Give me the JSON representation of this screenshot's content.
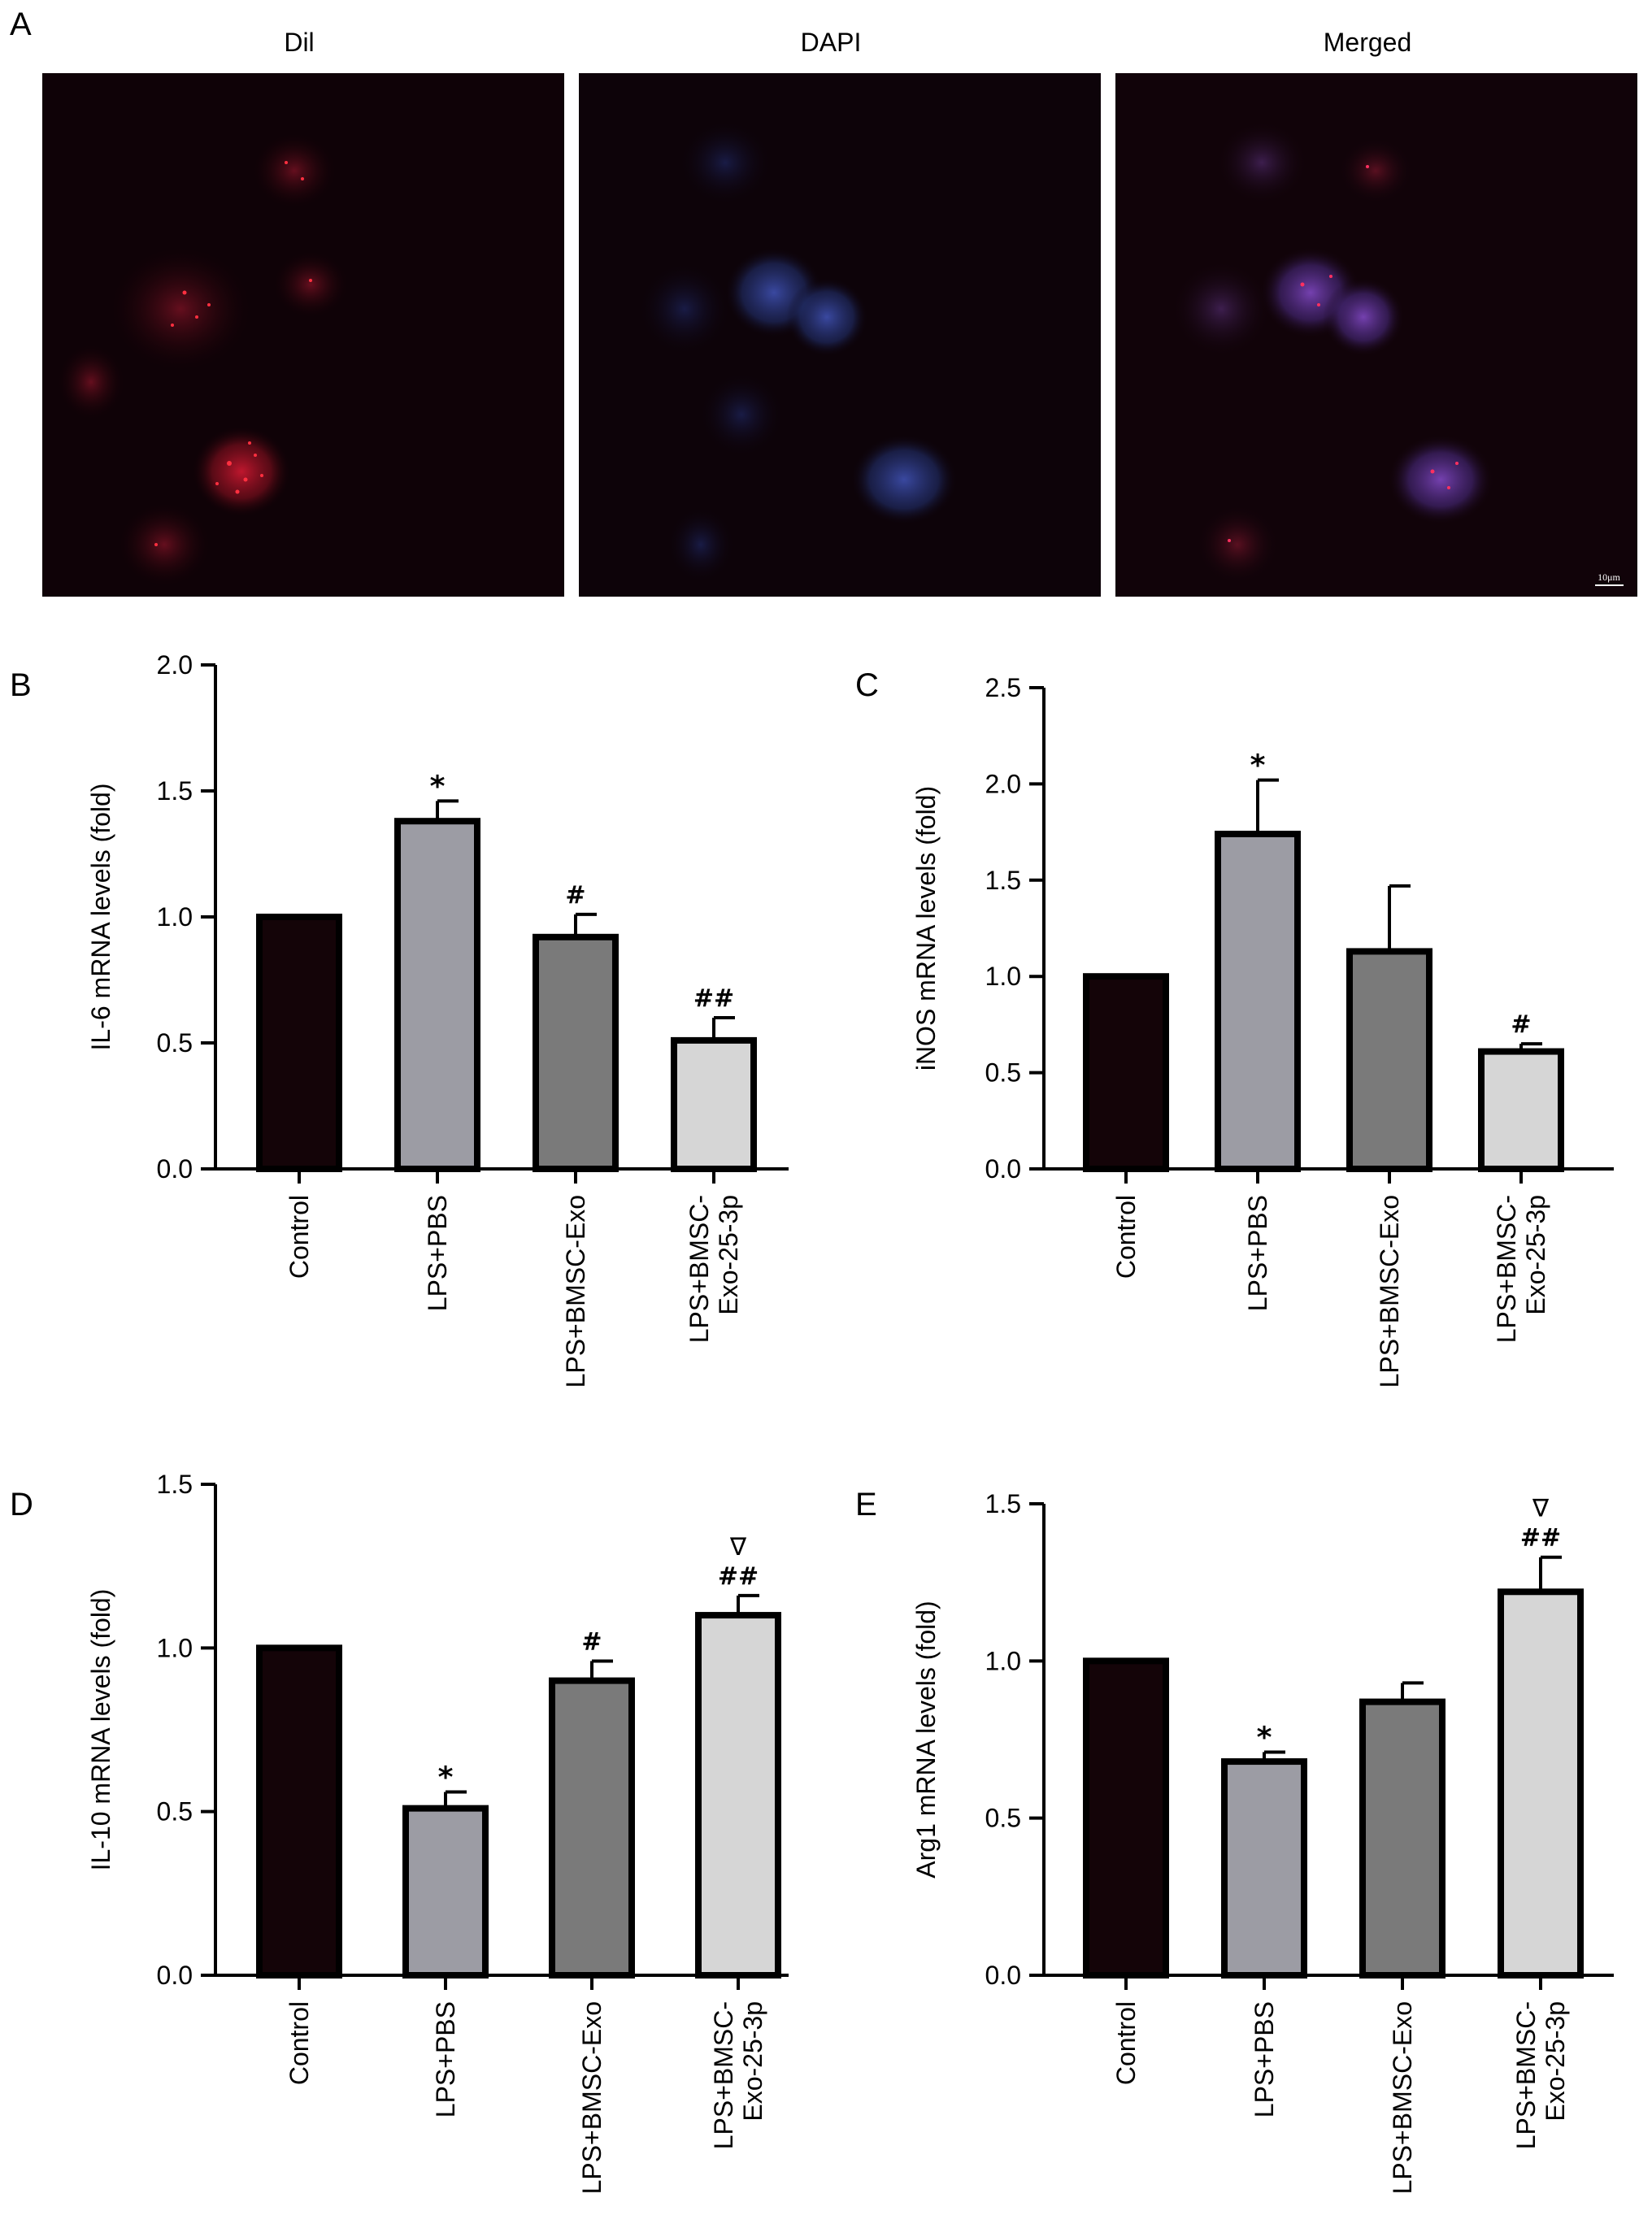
{
  "panel_a": {
    "letter": "A",
    "images": [
      {
        "title": "Dil",
        "channel": "red"
      },
      {
        "title": "DAPI",
        "channel": "blue"
      },
      {
        "title": "Merged",
        "channel": "merged"
      }
    ],
    "scale_bar": "10μm"
  },
  "colors": {
    "Control": "#140408",
    "LPS+PBS": "#9c9ca4",
    "LPS+BMSC-Exo": "#7a7a7a",
    "LPS+BMSC-Exo-25-3p": "#d6d6d6"
  },
  "chart_data": [
    {
      "panel": "B",
      "type": "bar",
      "ylabel": "IL-6 mRNA levels (fold)",
      "ylim": [
        0,
        2.0
      ],
      "ticks": [
        "0.0",
        "0.5",
        "1.0",
        "1.5",
        "2.0"
      ],
      "categories": [
        "Control",
        "LPS+PBS",
        "LPS+BMSC-Exo",
        "LPS+BMSC-\nExo-25-3p"
      ],
      "values": [
        1.0,
        1.38,
        0.92,
        0.51
      ],
      "errors": [
        0,
        0.08,
        0.09,
        0.09
      ],
      "marks": [
        "",
        "*",
        "#",
        "##"
      ]
    },
    {
      "panel": "C",
      "type": "bar",
      "ylabel": "iNOS mRNA levels (fold)",
      "ylim": [
        0,
        2.5
      ],
      "ticks": [
        "0.0",
        "0.5",
        "1.0",
        "1.5",
        "2.0",
        "2.5"
      ],
      "categories": [
        "Control",
        "LPS+PBS",
        "LPS+BMSC-Exo",
        "LPS+BMSC-\nExo-25-3p"
      ],
      "values": [
        1.0,
        1.74,
        1.13,
        0.61
      ],
      "errors": [
        0,
        0.28,
        0.34,
        0.04
      ],
      "marks": [
        "",
        "*",
        "",
        "#"
      ]
    },
    {
      "panel": "D",
      "type": "bar",
      "ylabel": "IL-10 mRNA levels (fold)",
      "ylim": [
        0,
        1.5
      ],
      "ticks": [
        "0.0",
        "0.5",
        "1.0",
        "1.5"
      ],
      "categories": [
        "Control",
        "LPS+PBS",
        "LPS+BMSC-Exo",
        "LPS+BMSC-\nExo-25-3p"
      ],
      "values": [
        1.0,
        0.51,
        0.9,
        1.1
      ],
      "errors": [
        0,
        0.05,
        0.06,
        0.06
      ],
      "marks": [
        "",
        "*",
        "#",
        "∇\n##"
      ]
    },
    {
      "panel": "E",
      "type": "bar",
      "ylabel": "Arg1 mRNA levels (fold)",
      "ylim": [
        0,
        1.5
      ],
      "ticks": [
        "0.0",
        "0.5",
        "1.0",
        "1.5"
      ],
      "categories": [
        "Control",
        "LPS+PBS",
        "LPS+BMSC-Exo",
        "LPS+BMSC-\nExo-25-3p"
      ],
      "values": [
        1.0,
        0.68,
        0.87,
        1.22
      ],
      "errors": [
        0,
        0.03,
        0.06,
        0.11
      ],
      "marks": [
        "",
        "*",
        "",
        "∇\n##"
      ]
    }
  ]
}
